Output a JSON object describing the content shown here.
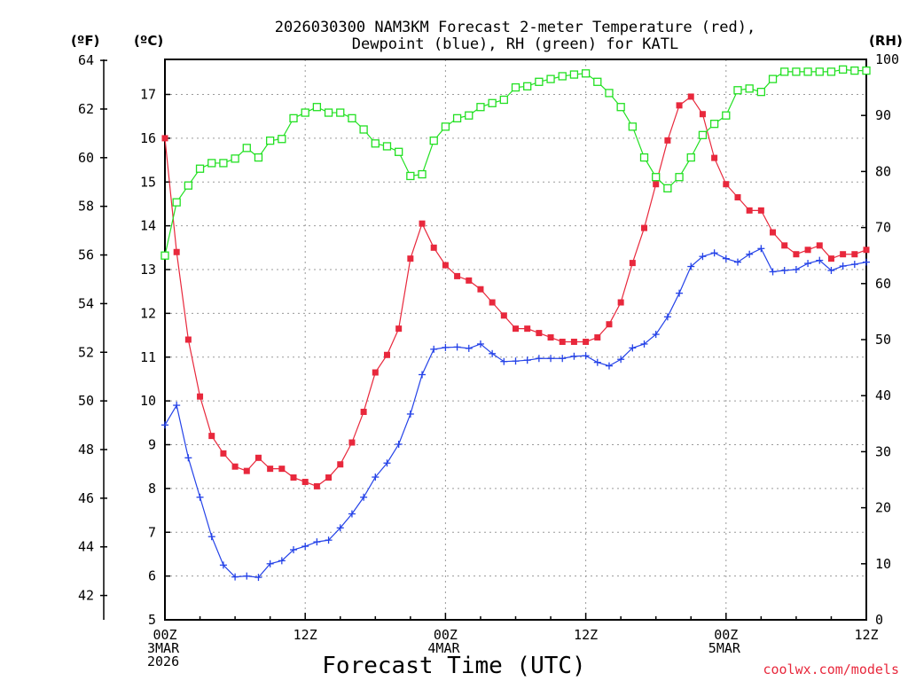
{
  "chart_data": {
    "type": "line",
    "title_line1": "2026030300 NAM3KM Forecast 2-meter Temperature (red),",
    "title_line2": "Dewpoint (blue), RH (green) for KATL",
    "unit_left_outer": "(ºF)",
    "unit_left_inner": "(ºC)",
    "unit_right": "(RH)",
    "xlabel": "Forecast Time (UTC)",
    "credit": "coolwx.com/models",
    "x_tick_labels": [
      {
        "hour": 0,
        "lines": [
          "00Z",
          "3MAR",
          "2026"
        ]
      },
      {
        "hour": 12,
        "lines": [
          "12Z"
        ]
      },
      {
        "hour": 24,
        "lines": [
          "00Z",
          "4MAR"
        ]
      },
      {
        "hour": 36,
        "lines": [
          "12Z"
        ]
      },
      {
        "hour": 48,
        "lines": [
          "00Z",
          "5MAR"
        ]
      },
      {
        "hour": 60,
        "lines": [
          "12Z"
        ]
      }
    ],
    "x_range_hours": [
      0,
      60
    ],
    "celsius_range": [
      5,
      17.8
    ],
    "celsius_ticks": [
      5,
      6,
      7,
      8,
      9,
      10,
      11,
      12,
      13,
      14,
      15,
      16,
      17
    ],
    "fahrenheit_ticks": [
      42,
      44,
      46,
      48,
      50,
      52,
      54,
      56,
      58,
      60,
      62,
      64
    ],
    "rh_range": [
      0,
      100
    ],
    "rh_ticks": [
      0,
      10,
      20,
      30,
      40,
      50,
      60,
      70,
      80,
      90,
      100
    ],
    "grid": true,
    "series": [
      {
        "name": "2-meter Temperature",
        "color": "#e8283c",
        "axis": "celsius",
        "marker": "filled-square",
        "x": [
          0,
          1,
          2,
          3,
          4,
          5,
          6,
          7,
          8,
          9,
          10,
          11,
          12,
          13,
          14,
          15,
          16,
          17,
          18,
          19,
          20,
          21,
          22,
          23,
          24,
          25,
          26,
          27,
          28,
          29,
          30,
          31,
          32,
          33,
          34,
          35,
          36,
          37,
          38,
          39,
          40,
          41,
          42,
          43,
          44,
          45,
          46,
          47,
          48,
          49,
          50,
          51,
          52,
          53,
          54,
          55,
          56,
          57,
          58,
          59,
          60
        ],
        "values": [
          16.0,
          13.4,
          11.4,
          10.1,
          9.2,
          8.8,
          8.5,
          8.4,
          8.7,
          8.45,
          8.45,
          8.25,
          8.15,
          8.05,
          8.25,
          8.55,
          9.05,
          9.75,
          10.65,
          11.05,
          11.65,
          13.25,
          14.05,
          13.5,
          13.1,
          12.85,
          12.75,
          12.55,
          12.25,
          11.95,
          11.65,
          11.65,
          11.55,
          11.45,
          11.35,
          11.35,
          11.35,
          11.45,
          11.75,
          12.25,
          13.15,
          13.95,
          14.95,
          15.95,
          16.75,
          16.95,
          16.55,
          15.55,
          14.95,
          14.65,
          14.35,
          14.35,
          13.85,
          13.55,
          13.35,
          13.45,
          13.55,
          13.25,
          13.35,
          13.35,
          13.45
        ]
      },
      {
        "name": "Dewpoint",
        "color": "#2442e8",
        "axis": "celsius",
        "marker": "plus",
        "x": [
          0,
          1,
          2,
          3,
          4,
          5,
          6,
          7,
          8,
          9,
          10,
          11,
          12,
          13,
          14,
          15,
          16,
          17,
          18,
          19,
          20,
          21,
          22,
          23,
          24,
          25,
          26,
          27,
          28,
          29,
          30,
          31,
          32,
          33,
          34,
          35,
          36,
          37,
          38,
          39,
          40,
          41,
          42,
          43,
          44,
          45,
          46,
          47,
          48,
          49,
          50,
          51,
          52,
          53,
          54,
          55,
          56,
          57,
          58,
          59,
          60
        ],
        "values": [
          9.45,
          9.9,
          8.7,
          7.8,
          6.9,
          6.25,
          5.98,
          6.0,
          5.97,
          6.28,
          6.35,
          6.6,
          6.68,
          6.78,
          6.82,
          7.1,
          7.42,
          7.8,
          8.26,
          8.58,
          9.01,
          9.7,
          10.6,
          11.18,
          11.22,
          11.23,
          11.2,
          11.3,
          11.08,
          10.9,
          10.91,
          10.93,
          10.97,
          10.97,
          10.97,
          11.02,
          11.03,
          10.88,
          10.8,
          10.95,
          11.21,
          11.3,
          11.52,
          11.92,
          12.46,
          13.07,
          13.3,
          13.38,
          13.25,
          13.17,
          13.35,
          13.48,
          12.95,
          12.98,
          13.0,
          13.14,
          13.21,
          12.98,
          13.08,
          13.12,
          13.17
        ]
      },
      {
        "name": "RH",
        "color": "#22e022",
        "axis": "rh",
        "marker": "open-square",
        "x": [
          0,
          1,
          2,
          3,
          4,
          5,
          6,
          7,
          8,
          9,
          10,
          11,
          12,
          13,
          14,
          15,
          16,
          17,
          18,
          19,
          20,
          21,
          22,
          23,
          24,
          25,
          26,
          27,
          28,
          29,
          30,
          31,
          32,
          33,
          34,
          35,
          36,
          37,
          38,
          39,
          40,
          41,
          42,
          43,
          44,
          45,
          46,
          47,
          48,
          49,
          50,
          51,
          52,
          53,
          54,
          55,
          56,
          57,
          58,
          59,
          60
        ],
        "values": [
          65,
          74.5,
          77.5,
          80.5,
          81.5,
          81.5,
          82.3,
          84.2,
          82.5,
          85.5,
          85.8,
          89.5,
          90.5,
          91.5,
          90.5,
          90.5,
          89.5,
          87.5,
          85,
          84.5,
          83.5,
          79.2,
          79.5,
          85.5,
          88,
          89.5,
          90,
          91.5,
          92.2,
          92.8,
          95,
          95.2,
          96,
          96.5,
          97,
          97.3,
          97.5,
          96,
          94,
          91.5,
          88,
          82.5,
          79,
          77,
          79,
          82.5,
          86.5,
          88.5,
          90,
          94.5,
          94.8,
          94.2,
          96.5,
          97.8,
          97.8,
          97.8,
          97.8,
          97.8,
          98.2,
          98,
          98
        ]
      }
    ]
  }
}
